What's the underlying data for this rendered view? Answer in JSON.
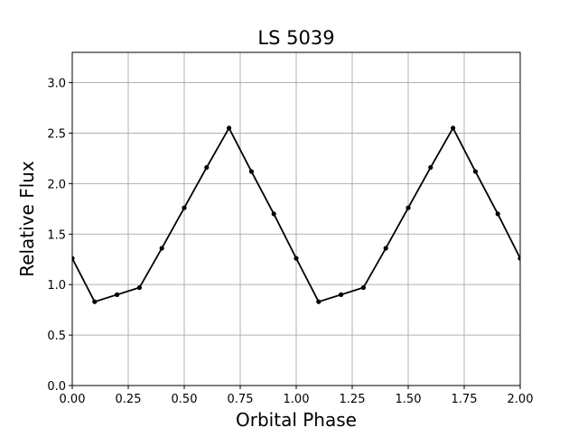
{
  "chart_data": {
    "type": "line",
    "title": "LS 5039",
    "xlabel": "Orbital Phase",
    "ylabel": "Relative Flux",
    "xlim": [
      0.0,
      2.0
    ],
    "ylim": [
      0.0,
      3.3
    ],
    "xticks": [
      "0.00",
      "0.25",
      "0.50",
      "0.75",
      "1.00",
      "1.25",
      "1.50",
      "1.75",
      "2.00"
    ],
    "yticks": [
      "0.0",
      "0.5",
      "1.0",
      "1.5",
      "2.0",
      "2.5",
      "3.0"
    ],
    "grid": true,
    "series": [
      {
        "color": "#000000",
        "marker": "dot",
        "x": [
          0.0,
          0.1,
          0.2,
          0.3,
          0.4,
          0.5,
          0.6,
          0.7,
          0.8,
          0.9,
          1.0,
          1.1,
          1.2,
          1.3,
          1.4,
          1.5,
          1.6,
          1.7,
          1.8,
          1.9,
          2.0
        ],
        "y": [
          1.26,
          0.83,
          0.9,
          0.97,
          1.36,
          1.76,
          2.16,
          2.55,
          2.12,
          1.7,
          1.26,
          0.83,
          0.9,
          0.97,
          1.36,
          1.76,
          2.16,
          2.55,
          2.12,
          1.7,
          1.26
        ]
      }
    ]
  }
}
